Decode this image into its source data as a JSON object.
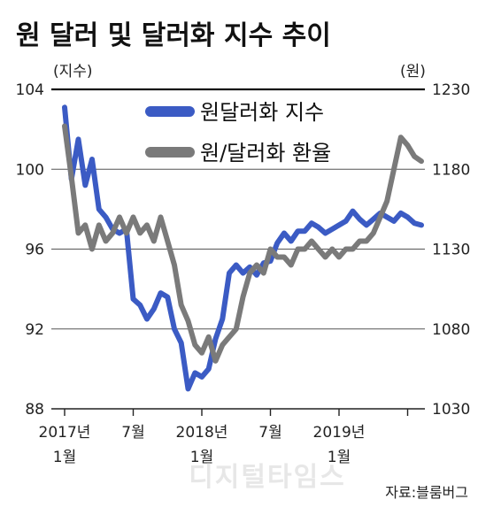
{
  "chart_data": {
    "type": "line",
    "title": "원 달러 및 달러화 지수 추이",
    "y_left_unit": "(지수)",
    "y_right_unit": "(원)",
    "y_left_ticks": [
      "104",
      "100",
      "96",
      "92",
      "88"
    ],
    "y_right_ticks": [
      "1230",
      "1180",
      "1130",
      "1080",
      "1030"
    ],
    "ylim_left": [
      88,
      104
    ],
    "ylim_right": [
      1030,
      1230
    ],
    "x_tick_labels": [
      {
        "line1": "2017년",
        "line2": "1월"
      },
      {
        "line1": "7월",
        "line2": ""
      },
      {
        "line1": "2018년",
        "line2": "1월"
      },
      {
        "line1": "7월",
        "line2": ""
      },
      {
        "line1": "2019년",
        "line2": "1월"
      }
    ],
    "source": "자료:블룸버그",
    "watermark": "디지털타임스",
    "grid": true,
    "legend_position": "top-center",
    "series": [
      {
        "name": "원달러화 지수",
        "color": "#3b5bc4",
        "axis": "left",
        "x": [
          2017.0,
          2017.05,
          2017.1,
          2017.15,
          2017.2,
          2017.25,
          2017.3,
          2017.35,
          2017.4,
          2017.45,
          2017.5,
          2017.55,
          2017.6,
          2017.65,
          2017.7,
          2017.75,
          2017.8,
          2017.85,
          2017.9,
          2017.95,
          2018.0,
          2018.05,
          2018.1,
          2018.15,
          2018.2,
          2018.25,
          2018.3,
          2018.35,
          2018.4,
          2018.45,
          2018.5,
          2018.55,
          2018.6,
          2018.65,
          2018.7,
          2018.75,
          2018.8,
          2018.85,
          2018.9,
          2018.95,
          2019.0,
          2019.05,
          2019.1,
          2019.15,
          2019.2,
          2019.25,
          2019.3,
          2019.35,
          2019.4,
          2019.45,
          2019.5,
          2019.55,
          2019.6
        ],
        "values": [
          103.1,
          99.5,
          101.5,
          99.2,
          100.5,
          98.0,
          97.6,
          97.0,
          96.8,
          97.0,
          93.5,
          93.2,
          92.5,
          93.0,
          93.8,
          93.6,
          92.0,
          91.3,
          89.0,
          89.8,
          89.6,
          90.0,
          91.5,
          92.5,
          94.8,
          95.2,
          94.8,
          95.1,
          94.7,
          95.3,
          95.4,
          96.3,
          96.8,
          96.4,
          96.9,
          96.9,
          97.3,
          97.1,
          96.8,
          97.0,
          97.2,
          97.4,
          97.9,
          97.5,
          97.2,
          97.5,
          97.8,
          97.6,
          97.4,
          97.8,
          97.6,
          97.3,
          97.2
        ]
      },
      {
        "name": "원/달러화 환율",
        "color": "#7a7a7a",
        "axis": "right",
        "x": [
          2017.0,
          2017.05,
          2017.1,
          2017.15,
          2017.2,
          2017.25,
          2017.3,
          2017.35,
          2017.4,
          2017.45,
          2017.5,
          2017.55,
          2017.6,
          2017.65,
          2017.7,
          2017.75,
          2017.8,
          2017.85,
          2017.9,
          2017.95,
          2018.0,
          2018.05,
          2018.1,
          2018.15,
          2018.2,
          2018.25,
          2018.3,
          2018.35,
          2018.4,
          2018.45,
          2018.5,
          2018.55,
          2018.6,
          2018.65,
          2018.7,
          2018.75,
          2018.8,
          2018.85,
          2018.9,
          2018.95,
          2019.0,
          2019.05,
          2019.1,
          2019.15,
          2019.2,
          2019.25,
          2019.3,
          2019.35,
          2019.4,
          2019.45,
          2019.5,
          2019.55,
          2019.6
        ],
        "values": [
          1207,
          1175,
          1140,
          1145,
          1130,
          1145,
          1135,
          1140,
          1150,
          1140,
          1150,
          1140,
          1145,
          1135,
          1150,
          1135,
          1120,
          1095,
          1085,
          1070,
          1065,
          1075,
          1060,
          1070,
          1075,
          1080,
          1100,
          1115,
          1120,
          1115,
          1130,
          1125,
          1125,
          1120,
          1130,
          1130,
          1135,
          1130,
          1125,
          1130,
          1125,
          1130,
          1130,
          1135,
          1135,
          1140,
          1150,
          1160,
          1180,
          1200,
          1195,
          1188,
          1185
        ]
      }
    ]
  }
}
